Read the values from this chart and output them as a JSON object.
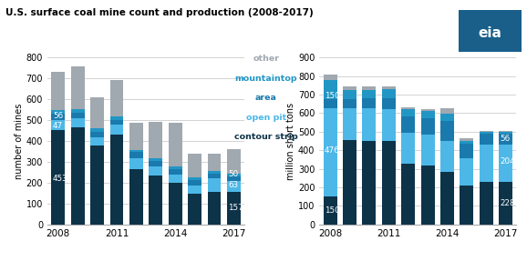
{
  "title": "U.S. surface coal mine count and production (2008-2017)",
  "left_ylabel": "number of mines",
  "right_ylabel": "million short tons",
  "years": [
    2008,
    2009,
    2010,
    2011,
    2012,
    2013,
    2014,
    2015,
    2016,
    2017
  ],
  "left_ylim": [
    0,
    800
  ],
  "right_ylim": [
    0,
    900
  ],
  "left_yticks": [
    0,
    100,
    200,
    300,
    400,
    500,
    600,
    700,
    800
  ],
  "right_yticks": [
    0,
    100,
    200,
    300,
    400,
    500,
    600,
    700,
    800,
    900
  ],
  "left_cs": [
    453,
    465,
    377,
    430,
    266,
    236,
    200,
    148,
    157,
    157
  ],
  "left_op": [
    47,
    43,
    42,
    50,
    52,
    44,
    38,
    38,
    63,
    50
  ],
  "left_area": [
    30,
    27,
    25,
    22,
    28,
    26,
    26,
    26,
    25,
    25
  ],
  "left_mt": [
    20,
    18,
    16,
    14,
    12,
    12,
    12,
    12,
    12,
    12
  ],
  "left_oth": [
    180,
    202,
    150,
    175,
    131,
    172,
    212,
    116,
    83,
    116
  ],
  "right_cs": [
    150,
    455,
    452,
    450,
    325,
    317,
    283,
    210,
    228,
    228
  ],
  "right_op": [
    476,
    172,
    172,
    170,
    170,
    168,
    168,
    148,
    204,
    204
  ],
  "right_area": [
    50,
    50,
    55,
    60,
    85,
    85,
    105,
    75,
    56,
    56
  ],
  "right_mt": [
    100,
    45,
    45,
    48,
    40,
    40,
    42,
    18,
    10,
    10
  ],
  "right_oth": [
    30,
    20,
    20,
    14,
    10,
    13,
    30,
    14,
    5,
    5
  ],
  "c_cs": "#0d3349",
  "c_op": "#4db8e8",
  "c_area": "#1a7aad",
  "c_mt": "#2196c4",
  "c_oth": "#a0a8b0",
  "eia_color": "#1a5f8a"
}
